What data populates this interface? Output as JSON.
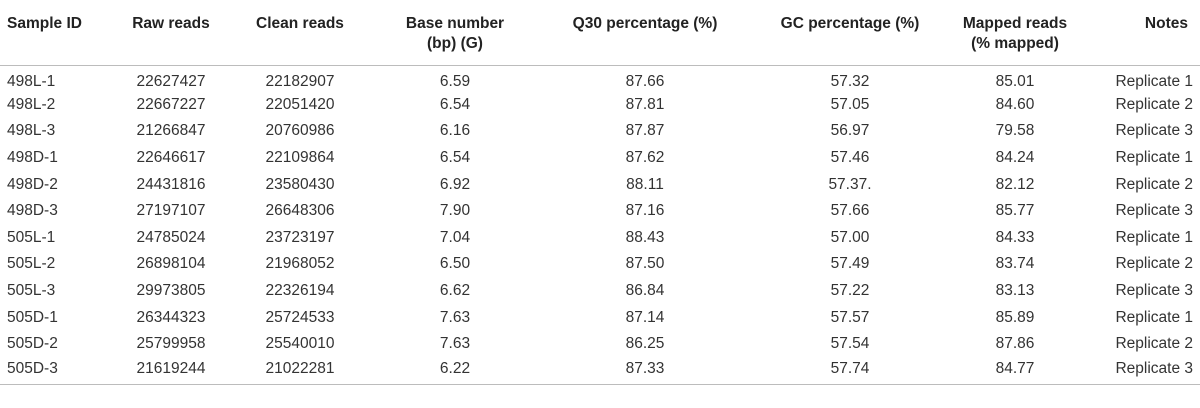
{
  "table": {
    "headers": [
      [
        "Sample ID"
      ],
      [
        "Raw reads"
      ],
      [
        "Clean reads"
      ],
      [
        "Base number",
        "(bp) (G)"
      ],
      [
        "Q30 percentage (%)"
      ],
      [
        "GC percentage (%)"
      ],
      [
        "Mapped reads",
        "(% mapped)"
      ],
      [
        "Notes"
      ]
    ],
    "rows": [
      [
        "498L-1",
        "22627427",
        "22182907",
        "6.59",
        "87.66",
        "57.32",
        "85.01",
        "Replicate 1"
      ],
      [
        "498L-2",
        "22667227",
        "22051420",
        "6.54",
        "87.81",
        "57.05",
        "84.60",
        "Replicate 2"
      ],
      [
        "498L-3",
        "21266847",
        "20760986",
        "6.16",
        "87.87",
        "56.97",
        "79.58",
        "Replicate 3"
      ],
      [
        "498D-1",
        "22646617",
        "22109864",
        "6.54",
        "87.62",
        "57.46",
        "84.24",
        "Replicate 1"
      ],
      [
        "498D-2",
        "24431816",
        "23580430",
        "6.92",
        "88.11",
        "57.37.",
        "82.12",
        "Replicate 2"
      ],
      [
        "498D-3",
        "27197107",
        "26648306",
        "7.90",
        "87.16",
        "57.66",
        "85.77",
        "Replicate 3"
      ],
      [
        "505L-1",
        "24785024",
        "23723197",
        "7.04",
        "88.43",
        "57.00",
        "84.33",
        "Replicate 1"
      ],
      [
        "505L-2",
        "26898104",
        "21968052",
        "6.50",
        "87.50",
        "57.49",
        "83.74",
        "Replicate 2"
      ],
      [
        "505L-3",
        "29973805",
        "22326194",
        "6.62",
        "86.84",
        "57.22",
        "83.13",
        "Replicate 3"
      ],
      [
        "505D-1",
        "26344323",
        "25724533",
        "7.63",
        "87.14",
        "57.57",
        "85.89",
        "Replicate 1"
      ],
      [
        "505D-2",
        "25799958",
        "25540010",
        "7.63",
        "86.25",
        "57.54",
        "87.86",
        "Replicate 2"
      ],
      [
        "505D-3",
        "21619244",
        "21022281",
        "6.22",
        "87.33",
        "57.74",
        "84.77",
        "Replicate 3"
      ]
    ]
  }
}
